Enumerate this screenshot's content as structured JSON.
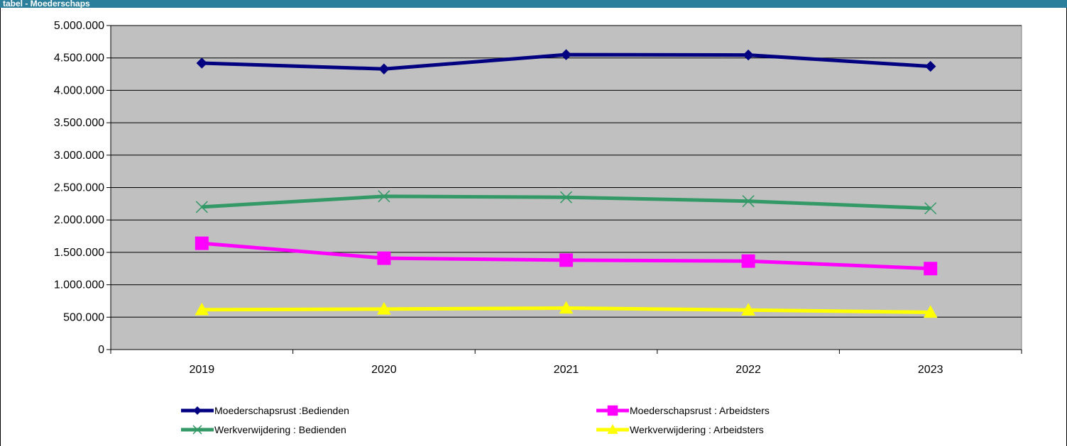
{
  "window": {
    "title": "tabel - Moederschaps"
  },
  "colors": {
    "plot_background": "#c0c0c0",
    "title_bar": "#2b7f9b",
    "series": [
      "#000080",
      "#ff00ff",
      "#339966",
      "#ffff00"
    ]
  },
  "chart_data": {
    "type": "line",
    "title": "",
    "xlabel": "",
    "ylabel": "",
    "categories": [
      "2019",
      "2020",
      "2021",
      "2022",
      "2023"
    ],
    "ylim": [
      0,
      5000000
    ],
    "yticks": [
      0,
      500000,
      1000000,
      1500000,
      2000000,
      2500000,
      3000000,
      3500000,
      4000000,
      4500000,
      5000000
    ],
    "ytick_labels": [
      "0",
      "500.000",
      "1.000.000",
      "1.500.000",
      "2.000.000",
      "2.500.000",
      "3.000.000",
      "3.500.000",
      "4.000.000",
      "4.500.000",
      "5.000.000"
    ],
    "grid": "horizontal",
    "legend_position": "bottom",
    "series": [
      {
        "name": "Moederschapsrust :Bedienden",
        "color": "#000080",
        "marker": "diamond",
        "values": [
          4420000,
          4330000,
          4550000,
          4545000,
          4370000
        ]
      },
      {
        "name": "Moederschapsrust : Arbeidsters",
        "color": "#ff00ff",
        "marker": "square",
        "values": [
          1640000,
          1410000,
          1380000,
          1365000,
          1250000
        ]
      },
      {
        "name": "Werkverwijdering : Bedienden",
        "color": "#339966",
        "marker": "x",
        "values": [
          2200000,
          2365000,
          2350000,
          2290000,
          2180000
        ]
      },
      {
        "name": "Werkverwijdering : Arbeidsters",
        "color": "#ffff00",
        "marker": "triangle",
        "values": [
          615000,
          625000,
          640000,
          610000,
          575000
        ]
      }
    ]
  }
}
